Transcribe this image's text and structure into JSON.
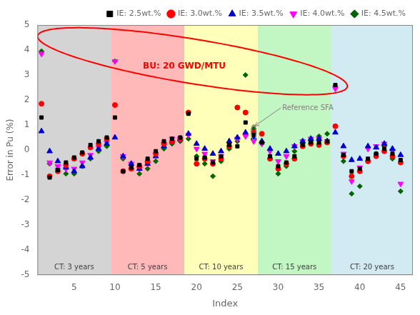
{
  "chart_data": {
    "type": "scatter",
    "xlabel": "Index",
    "ylabel": "Error in Pu (%)",
    "xlim": [
      0.5,
      46.5
    ],
    "xticks": [
      5,
      10,
      15,
      20,
      25,
      30,
      35,
      40,
      45
    ],
    "ylim": [
      -5,
      5
    ],
    "yticks": [
      -5,
      -4,
      -3,
      -2,
      -1,
      0,
      1,
      2,
      3,
      4,
      5
    ],
    "grid": false,
    "legend": "upper right",
    "x": [
      1,
      2,
      3,
      4,
      5,
      6,
      7,
      8,
      9,
      10,
      11,
      12,
      13,
      14,
      15,
      16,
      17,
      18,
      19,
      20,
      21,
      22,
      23,
      24,
      25,
      26,
      27,
      28,
      29,
      30,
      31,
      32,
      33,
      34,
      35,
      36,
      37,
      38,
      39,
      40,
      41,
      42,
      43,
      44,
      45
    ],
    "series": [
      {
        "name": "IE: 2.5wt.%",
        "color": "#000000",
        "marker": "square",
        "values": [
          1.3,
          -1.1,
          -0.8,
          -0.5,
          -0.3,
          -0.1,
          0.2,
          0.35,
          0.5,
          1.3,
          -0.85,
          -0.7,
          -0.6,
          -0.35,
          -0.05,
          0.35,
          0.45,
          0.5,
          1.45,
          -0.35,
          -0.3,
          -0.5,
          -0.25,
          0.2,
          0.15,
          1.1,
          0.6,
          0.3,
          -0.25,
          -0.65,
          -0.5,
          -0.25,
          0.2,
          0.3,
          0.3,
          0.35,
          2.6,
          -0.2,
          -0.85,
          -0.75,
          -0.35,
          -0.15,
          0.05,
          -0.15,
          -0.4
        ]
      },
      {
        "name": "IE: 3.0wt.%",
        "color": "#ff0000",
        "marker": "circle",
        "values": [
          1.85,
          -1.05,
          -0.85,
          -0.6,
          -0.35,
          -0.15,
          0.1,
          0.25,
          0.45,
          1.8,
          -0.85,
          -0.75,
          -0.65,
          -0.45,
          -0.15,
          0.25,
          0.35,
          0.45,
          1.5,
          -0.55,
          -0.35,
          -0.55,
          -0.35,
          0.15,
          1.7,
          1.5,
          0.7,
          0.65,
          -0.35,
          -0.75,
          -0.55,
          -0.35,
          0.15,
          0.25,
          0.2,
          0.3,
          0.95,
          -0.25,
          -1.05,
          -0.85,
          -0.45,
          -0.25,
          -0.05,
          -0.25,
          -0.5
        ]
      },
      {
        "name": "IE: 3.5wt.%",
        "color": "#0000cc",
        "marker": "triangle-up",
        "values": [
          0.75,
          -0.05,
          -0.45,
          -0.7,
          -0.85,
          -0.65,
          -0.3,
          0.05,
          0.25,
          0.5,
          -0.25,
          -0.55,
          -0.75,
          -0.55,
          -0.25,
          0.15,
          0.35,
          0.45,
          0.65,
          0.25,
          0.05,
          -0.15,
          -0.05,
          0.35,
          0.5,
          0.7,
          0.5,
          0.35,
          0.05,
          -0.15,
          -0.05,
          0.15,
          0.35,
          0.45,
          0.45,
          0.35,
          0.7,
          0.15,
          -0.4,
          -0.35,
          0.15,
          0.1,
          0.25,
          0.05,
          -0.2
        ]
      },
      {
        "name": "IE: 4.0wt.%",
        "color": "#ff00ff",
        "marker": "triangle-down",
        "values": [
          3.85,
          -0.5,
          -0.65,
          -0.75,
          -0.75,
          -0.5,
          -0.2,
          0.1,
          0.3,
          3.55,
          -0.25,
          -0.55,
          -0.75,
          -0.55,
          -0.15,
          0.25,
          0.45,
          0.45,
          0.6,
          0.05,
          -0.15,
          -0.45,
          -0.25,
          0.25,
          0.45,
          0.55,
          0.35,
          0.25,
          -0.05,
          -0.45,
          -0.25,
          0.15,
          0.35,
          0.45,
          0.45,
          0.35,
          2.45,
          -0.15,
          -1.25,
          -0.7,
          0.05,
          0.15,
          0.25,
          -0.05,
          -1.35
        ]
      },
      {
        "name": "IE: 4.5wt.%",
        "color": "#006400",
        "marker": "diamond",
        "values": [
          3.95,
          -0.55,
          -0.75,
          -0.95,
          -0.95,
          -0.65,
          -0.35,
          -0.05,
          0.15,
          3.55,
          -0.35,
          -0.75,
          -0.95,
          -0.75,
          -0.45,
          0.05,
          0.25,
          0.35,
          0.45,
          -0.25,
          -0.55,
          -1.05,
          -0.45,
          0.05,
          0.35,
          3.0,
          0.85,
          0.25,
          -0.35,
          -0.95,
          -0.65,
          -0.05,
          0.25,
          0.35,
          0.55,
          0.65,
          2.55,
          -0.45,
          -1.75,
          -1.45,
          -0.45,
          -0.15,
          0.15,
          -0.35,
          -1.65
        ]
      }
    ],
    "regions": [
      {
        "xmin": 0.5,
        "xmax": 9.5,
        "color": "#b0b0b0",
        "label": "CT: 3 years"
      },
      {
        "xmin": 9.5,
        "xmax": 18.5,
        "color": "#ff8080",
        "label": "CT: 5 years"
      },
      {
        "xmin": 18.5,
        "xmax": 27.5,
        "color": "#ffff80",
        "label": "CT: 10 years"
      },
      {
        "xmin": 27.5,
        "xmax": 36.5,
        "color": "#90ee90",
        "label": "CT: 15 years"
      },
      {
        "xmin": 36.5,
        "xmax": 46.5,
        "color": "#add8e6",
        "label": "CT: 20 years"
      }
    ],
    "annotations": [
      {
        "type": "ellipse",
        "x": 19.5,
        "y": 3.55,
        "width": 38,
        "height": 1.8,
        "angle": -3,
        "color": "red"
      },
      {
        "type": "text",
        "text": "BU: 20 GWD/MTU",
        "x": 18.5,
        "y": 3.35,
        "color": "red"
      },
      {
        "type": "circle",
        "x": 27,
        "y": 0.7,
        "radius": 0.3,
        "color": "gray"
      },
      {
        "type": "arrow",
        "text": "Reference SFA",
        "x": 27.1,
        "y": 0.95,
        "text_x": 30.5,
        "text_y": 1.6,
        "color": "gray"
      }
    ]
  }
}
